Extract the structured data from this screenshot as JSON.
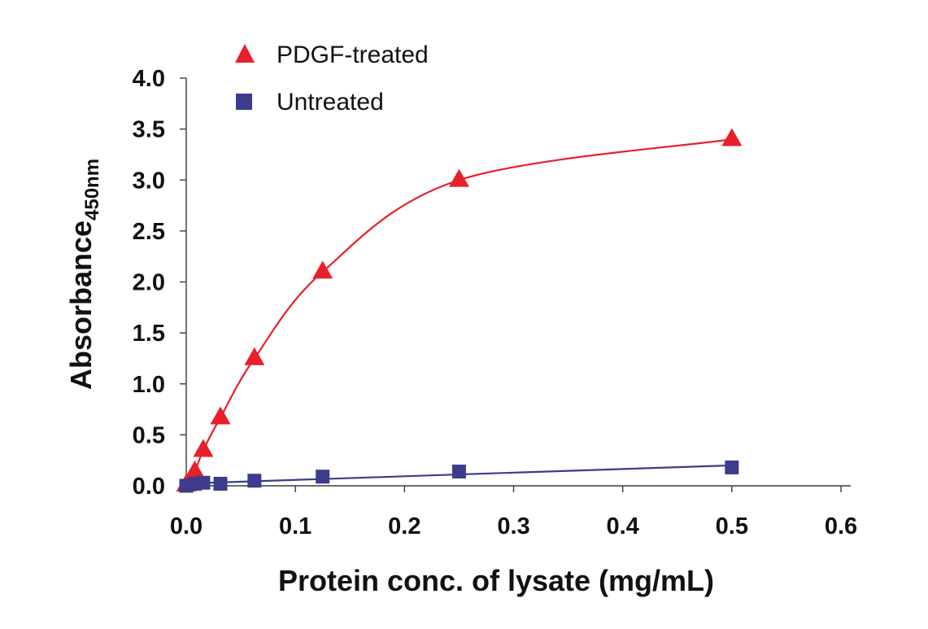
{
  "chart_data": {
    "type": "scatter",
    "title": "",
    "xlabel": "Protein conc. of lysate (mg/mL)",
    "ylabel": "Absorbance",
    "ylabel_subscript": "450nm",
    "xlim": [
      0,
      0.6
    ],
    "ylim": [
      0,
      4.0
    ],
    "xticks": [
      0,
      0.1,
      0.2,
      0.3,
      0.4,
      0.5,
      0.6
    ],
    "xtick_labels": [
      "0.0",
      "0.1",
      "0.2",
      "0.3",
      "0.4",
      "0.5",
      "0.6"
    ],
    "yticks": [
      0,
      0.5,
      1.0,
      1.5,
      2.0,
      2.5,
      3.0,
      3.5,
      4.0
    ],
    "ytick_labels": [
      "0.0",
      "0.5",
      "1.0",
      "1.5",
      "2.0",
      "2.5",
      "3.0",
      "3.5",
      "4.0"
    ],
    "grid": false,
    "legend_position": "top-left",
    "series": [
      {
        "name": "PDGF-treated",
        "marker": "triangle",
        "color": "#e8202a",
        "fit": "saturation-curve",
        "x": [
          0.0,
          0.0078,
          0.0156,
          0.0313,
          0.0625,
          0.125,
          0.25,
          0.5
        ],
        "y": [
          0.01,
          0.14,
          0.35,
          0.67,
          1.25,
          2.1,
          3.0,
          3.4
        ]
      },
      {
        "name": "Untreated",
        "marker": "square",
        "color": "#3b3c8c",
        "fit": "linear",
        "x": [
          0.0,
          0.0078,
          0.0156,
          0.0313,
          0.0625,
          0.125,
          0.25,
          0.5
        ],
        "y": [
          0.0,
          0.02,
          0.03,
          0.02,
          0.05,
          0.09,
          0.14,
          0.18
        ]
      }
    ]
  }
}
